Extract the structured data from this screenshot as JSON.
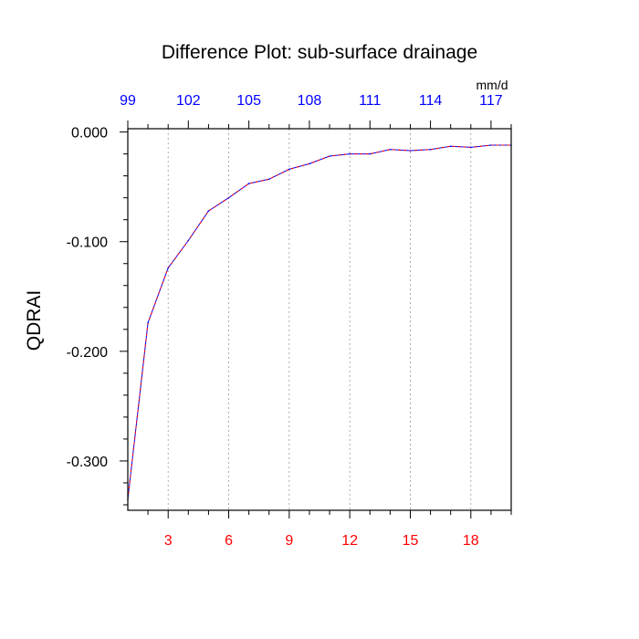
{
  "chart_data": {
    "type": "line",
    "title": "Difference Plot: sub-surface drainage",
    "ylabel": "QDRAI",
    "xlabel": "",
    "top_axis_unit": "mm/d",
    "xlim": [
      1,
      20
    ],
    "ylim": [
      -0.345,
      0.003
    ],
    "grid": "vertical-dashed",
    "x_ticks_bottom": [
      {
        "value": 3,
        "label": "3"
      },
      {
        "value": 6,
        "label": "6"
      },
      {
        "value": 9,
        "label": "9"
      },
      {
        "value": 12,
        "label": "12"
      },
      {
        "value": 15,
        "label": "15"
      },
      {
        "value": 18,
        "label": "18"
      }
    ],
    "x_ticks_top": [
      {
        "value": 1,
        "label": "99"
      },
      {
        "value": 4,
        "label": "102"
      },
      {
        "value": 7,
        "label": "105"
      },
      {
        "value": 10,
        "label": "108"
      },
      {
        "value": 13,
        "label": "111"
      },
      {
        "value": 16,
        "label": "114"
      },
      {
        "value": 19,
        "label": "117"
      }
    ],
    "y_ticks": [
      {
        "value": 0.0,
        "label": "0.000"
      },
      {
        "value": -0.1,
        "label": "-0.100"
      },
      {
        "value": -0.2,
        "label": "-0.200"
      },
      {
        "value": -0.3,
        "label": "-0.300"
      }
    ],
    "series": [
      {
        "x": [
          1,
          2,
          3,
          4,
          5,
          6,
          7,
          8,
          9,
          10,
          11,
          12,
          13,
          14,
          15,
          16,
          17,
          18,
          19,
          20
        ],
        "y": [
          -0.335,
          -0.174,
          -0.124,
          -0.099,
          -0.072,
          -0.06,
          -0.047,
          -0.043,
          -0.034,
          -0.029,
          -0.022,
          -0.02,
          -0.02,
          -0.016,
          -0.017,
          -0.016,
          -0.013,
          -0.014,
          -0.012,
          -0.012
        ]
      }
    ],
    "colors": {
      "bottom_tick_labels": "#ff0000",
      "top_tick_labels": "#0000ff",
      "series_line_solid": "#0000ff",
      "series_line_dash": "#ff0000",
      "grid": "#999999",
      "axes": "#000000"
    }
  }
}
